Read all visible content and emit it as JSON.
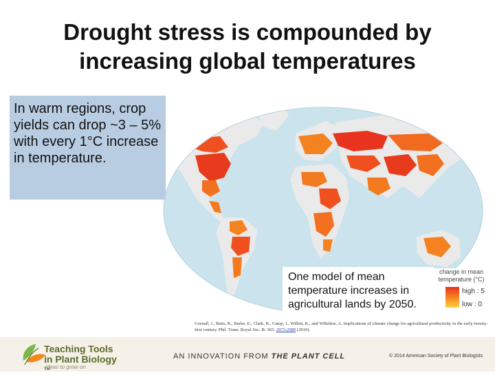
{
  "title": {
    "line1": "Drought stress is compounded by",
    "line2": "increasing global temperatures"
  },
  "callout": {
    "text": "In warm regions, crop yields can drop ~3 – 5% with every 1°C increase in temperature."
  },
  "map": {
    "ocean_color": "#cbe3ec",
    "land_color": "#eaeaea",
    "legend": {
      "title": "change in mean temperature (°C)",
      "high_label": "high : 5",
      "low_label": "low : 0",
      "high_color": "#e8331f",
      "low_color": "#ffd23f"
    }
  },
  "model_note": {
    "text": "One model of mean temperature increases in agricultural lands by 2050."
  },
  "citation": {
    "text": "Gornall, J., Betts, R., Burke, E., Clark, R., Camp, J., Willett, K., and Wiltshire, A. Implications of climate change for agricultural productivity in the early twenty-first century. Phil. Trans. Royal Soc. B: 365:",
    "link_text": "2973-2989",
    "suffix": "(2010)."
  },
  "footer": {
    "brand_line1": "Teaching Tools",
    "brand_line2": "in Plant Biology",
    "tm": "TM",
    "tagline": "ideas to grow on",
    "innovation_prefix": "AN INNOVATION FROM",
    "innovation_brand": "THE PLANT CELL",
    "copyright": "© 2014 American Society of Plant Biologists",
    "accent_green": "#7ab648",
    "accent_orange": "#f08a1c"
  }
}
